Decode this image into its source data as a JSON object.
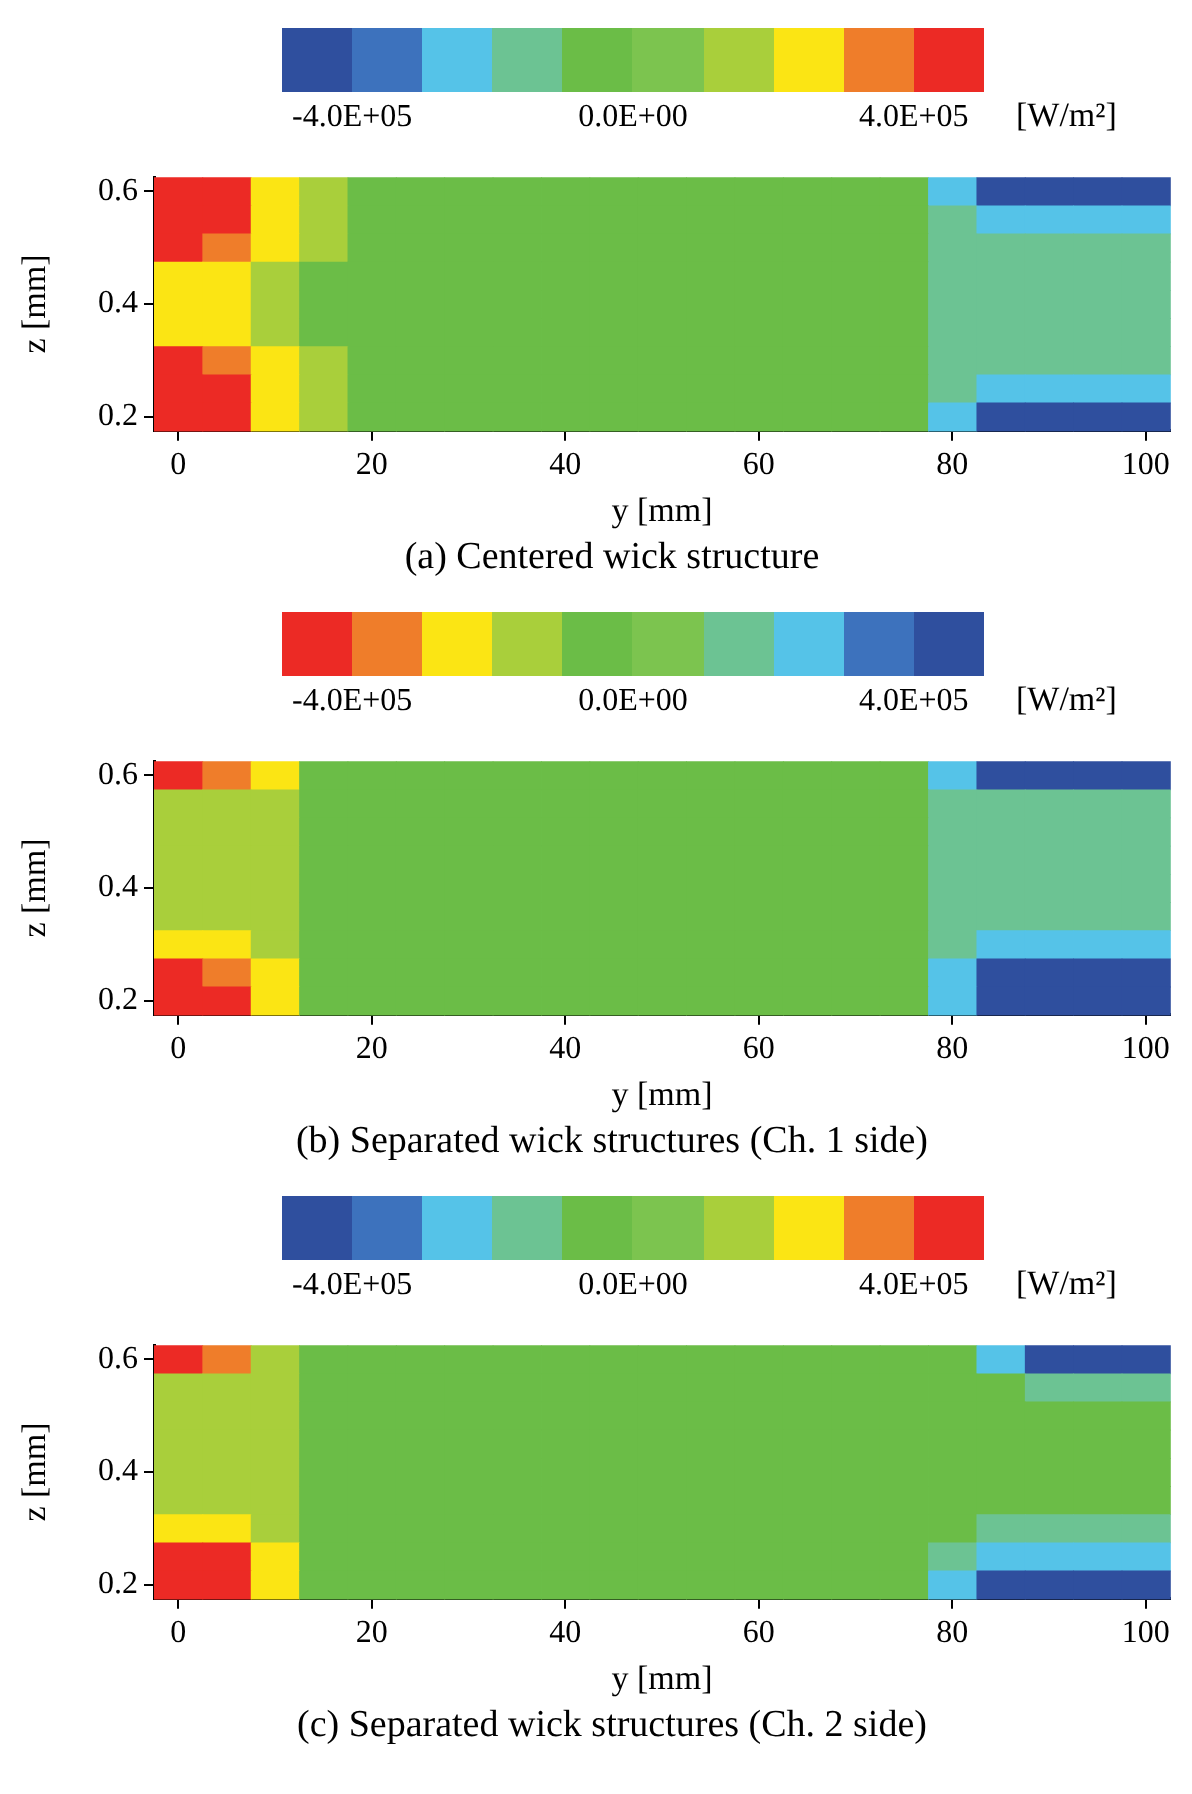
{
  "chart_data": [
    {
      "type": "heatmap",
      "title": "(a) Centered wick structure",
      "xlabel": "y [mm]",
      "ylabel": "z [mm]",
      "clabel": "[W/m²]",
      "clim": [
        -500000,
        500000
      ],
      "cticks": [
        {
          "value": -400000,
          "label": "-4.0E+05"
        },
        {
          "value": 0,
          "label": "0.0E+00"
        },
        {
          "value": 400000,
          "label": "4.0E+05"
        }
      ],
      "colors": [
        "#2f4f9e",
        "#3d72bd",
        "#55c3e8",
        "#6cc393",
        "#6bbd47",
        "#7cc44f",
        "#a9cf3b",
        "#fbe514",
        "#ef7d2a",
        "#ec2a25"
      ],
      "categories": [
        "0",
        null,
        null,
        null,
        "20",
        null,
        null,
        null,
        "40",
        null,
        null,
        null,
        "60",
        null,
        null,
        null,
        "80",
        null,
        null,
        null,
        "100"
      ],
      "y_categories": [
        "0.6",
        null,
        null,
        null,
        "0.4",
        null,
        null,
        null,
        "0.2"
      ],
      "cells": [
        [
          450000,
          450000,
          250000,
          150000,
          -50000,
          -50000,
          -50000,
          -50000,
          -50000,
          -50000,
          -50000,
          -50000,
          -50000,
          -50000,
          -50000,
          -50000,
          -250000,
          -450000,
          -450000,
          -450000,
          -450000
        ],
        [
          450000,
          450000,
          250000,
          150000,
          -50000,
          -50000,
          -50000,
          -50000,
          -50000,
          -50000,
          -50000,
          -50000,
          -50000,
          -50000,
          -50000,
          -50000,
          -150000,
          -250000,
          -250000,
          -250000,
          -250000
        ],
        [
          450000,
          350000,
          250000,
          150000,
          -50000,
          -50000,
          -50000,
          -50000,
          -50000,
          -50000,
          -50000,
          -50000,
          -50000,
          -50000,
          -50000,
          -50000,
          -150000,
          -150000,
          -150000,
          -150000,
          -150000
        ],
        [
          250000,
          250000,
          150000,
          -50000,
          -50000,
          -50000,
          -50000,
          -50000,
          -50000,
          -50000,
          -50000,
          -50000,
          -50000,
          -50000,
          -50000,
          -50000,
          -150000,
          -150000,
          -150000,
          -150000,
          -150000
        ],
        [
          250000,
          250000,
          150000,
          -50000,
          -50000,
          -50000,
          -50000,
          -50000,
          -50000,
          -50000,
          -50000,
          -50000,
          -50000,
          -50000,
          -50000,
          -50000,
          -150000,
          -150000,
          -150000,
          -150000,
          -150000
        ],
        [
          250000,
          250000,
          150000,
          -50000,
          -50000,
          -50000,
          -50000,
          -50000,
          -50000,
          -50000,
          -50000,
          -50000,
          -50000,
          -50000,
          -50000,
          -50000,
          -150000,
          -150000,
          -150000,
          -150000,
          -150000
        ],
        [
          450000,
          350000,
          250000,
          150000,
          -50000,
          -50000,
          -50000,
          -50000,
          -50000,
          -50000,
          -50000,
          -50000,
          -50000,
          -50000,
          -50000,
          -50000,
          -150000,
          -150000,
          -150000,
          -150000,
          -150000
        ],
        [
          450000,
          450000,
          250000,
          150000,
          -50000,
          -50000,
          -50000,
          -50000,
          -50000,
          -50000,
          -50000,
          -50000,
          -50000,
          -50000,
          -50000,
          -50000,
          -150000,
          -250000,
          -250000,
          -250000,
          -250000
        ],
        [
          450000,
          450000,
          250000,
          150000,
          -50000,
          -50000,
          -50000,
          -50000,
          -50000,
          -50000,
          -50000,
          -50000,
          -50000,
          -50000,
          -50000,
          -50000,
          -250000,
          -450000,
          -450000,
          -450000,
          -450000
        ]
      ]
    },
    {
      "type": "heatmap",
      "title": "(b) Separated wick structures (Ch. 1 side)",
      "xlabel": "y [mm]",
      "ylabel": "z [mm]",
      "clabel": "[W/m²]",
      "clim": [
        -500000,
        500000
      ],
      "cticks": [
        {
          "value": -400000,
          "label": "-4.0E+05"
        },
        {
          "value": 0,
          "label": "0.0E+00"
        },
        {
          "value": 400000,
          "label": "4.0E+05"
        }
      ],
      "colors": [
        "#ec2a25",
        "#ef7d2a",
        "#fbe514",
        "#a9cf3b",
        "#6bbd47",
        "#7cc44f",
        "#6cc393",
        "#55c3e8",
        "#3d72bd",
        "#2f4f9e"
      ],
      "categories": [
        "0",
        null,
        null,
        null,
        "20",
        null,
        null,
        null,
        "40",
        null,
        null,
        null,
        "60",
        null,
        null,
        null,
        "80",
        null,
        null,
        null,
        "100"
      ],
      "y_categories": [
        "0.6",
        null,
        null,
        null,
        "0.4",
        null,
        null,
        null,
        "0.2"
      ],
      "cells": [
        [
          -450000,
          -350000,
          -250000,
          -50000,
          -50000,
          -50000,
          -50000,
          -50000,
          -50000,
          -50000,
          -50000,
          -50000,
          -50000,
          -50000,
          -50000,
          -50000,
          250000,
          450000,
          450000,
          450000,
          450000
        ],
        [
          -150000,
          -150000,
          -150000,
          -50000,
          -50000,
          -50000,
          -50000,
          -50000,
          -50000,
          -50000,
          -50000,
          -50000,
          -50000,
          -50000,
          -50000,
          -50000,
          150000,
          150000,
          150000,
          150000,
          150000
        ],
        [
          -150000,
          -150000,
          -150000,
          -50000,
          -50000,
          -50000,
          -50000,
          -50000,
          -50000,
          -50000,
          -50000,
          -50000,
          -50000,
          -50000,
          -50000,
          -50000,
          150000,
          150000,
          150000,
          150000,
          150000
        ],
        [
          -150000,
          -150000,
          -150000,
          -50000,
          -50000,
          -50000,
          -50000,
          -50000,
          -50000,
          -50000,
          -50000,
          -50000,
          -50000,
          -50000,
          -50000,
          -50000,
          150000,
          150000,
          150000,
          150000,
          150000
        ],
        [
          -150000,
          -150000,
          -150000,
          -50000,
          -50000,
          -50000,
          -50000,
          -50000,
          -50000,
          -50000,
          -50000,
          -50000,
          -50000,
          -50000,
          -50000,
          -50000,
          150000,
          150000,
          150000,
          150000,
          150000
        ],
        [
          -150000,
          -150000,
          -150000,
          -50000,
          -50000,
          -50000,
          -50000,
          -50000,
          -50000,
          -50000,
          -50000,
          -50000,
          -50000,
          -50000,
          -50000,
          -50000,
          150000,
          150000,
          150000,
          150000,
          150000
        ],
        [
          -250000,
          -250000,
          -150000,
          -50000,
          -50000,
          -50000,
          -50000,
          -50000,
          -50000,
          -50000,
          -50000,
          -50000,
          -50000,
          -50000,
          -50000,
          -50000,
          150000,
          250000,
          250000,
          250000,
          250000
        ],
        [
          -450000,
          -350000,
          -250000,
          -50000,
          -50000,
          -50000,
          -50000,
          -50000,
          -50000,
          -50000,
          -50000,
          -50000,
          -50000,
          -50000,
          -50000,
          -50000,
          250000,
          450000,
          450000,
          450000,
          450000
        ],
        [
          -450000,
          -450000,
          -250000,
          -50000,
          -50000,
          -50000,
          -50000,
          -50000,
          -50000,
          -50000,
          -50000,
          -50000,
          -50000,
          -50000,
          -50000,
          -50000,
          250000,
          450000,
          450000,
          450000,
          450000
        ]
      ]
    },
    {
      "type": "heatmap",
      "title": "(c) Separated wick structures (Ch. 2 side)",
      "xlabel": "y [mm]",
      "ylabel": "z [mm]",
      "clabel": "[W/m²]",
      "clim": [
        -500000,
        500000
      ],
      "cticks": [
        {
          "value": -400000,
          "label": "-4.0E+05"
        },
        {
          "value": 0,
          "label": "0.0E+00"
        },
        {
          "value": 400000,
          "label": "4.0E+05"
        }
      ],
      "colors": [
        "#2f4f9e",
        "#3d72bd",
        "#55c3e8",
        "#6cc393",
        "#6bbd47",
        "#7cc44f",
        "#a9cf3b",
        "#fbe514",
        "#ef7d2a",
        "#ec2a25"
      ],
      "categories": [
        "0",
        null,
        null,
        null,
        "20",
        null,
        null,
        null,
        "40",
        null,
        null,
        null,
        "60",
        null,
        null,
        null,
        "80",
        null,
        null,
        null,
        "100"
      ],
      "y_categories": [
        "0.6",
        null,
        null,
        null,
        "0.4",
        null,
        null,
        null,
        "0.2"
      ],
      "cells": [
        [
          450000,
          350000,
          150000,
          -50000,
          -50000,
          -50000,
          -50000,
          -50000,
          -50000,
          -50000,
          -50000,
          -50000,
          -50000,
          -50000,
          -50000,
          -50000,
          -50000,
          -250000,
          -450000,
          -450000,
          -450000
        ],
        [
          150000,
          150000,
          150000,
          -50000,
          -50000,
          -50000,
          -50000,
          -50000,
          -50000,
          -50000,
          -50000,
          -50000,
          -50000,
          -50000,
          -50000,
          -50000,
          -50000,
          -50000,
          -150000,
          -150000,
          -150000
        ],
        [
          150000,
          150000,
          150000,
          -50000,
          -50000,
          -50000,
          -50000,
          -50000,
          -50000,
          -50000,
          -50000,
          -50000,
          -50000,
          -50000,
          -50000,
          -50000,
          -50000,
          -50000,
          -50000,
          -50000,
          -50000
        ],
        [
          150000,
          150000,
          150000,
          -50000,
          -50000,
          -50000,
          -50000,
          -50000,
          -50000,
          -50000,
          -50000,
          -50000,
          -50000,
          -50000,
          -50000,
          -50000,
          -50000,
          -50000,
          -50000,
          -50000,
          -50000
        ],
        [
          150000,
          150000,
          150000,
          -50000,
          -50000,
          -50000,
          -50000,
          -50000,
          -50000,
          -50000,
          -50000,
          -50000,
          -50000,
          -50000,
          -50000,
          -50000,
          -50000,
          -50000,
          -50000,
          -50000,
          -50000
        ],
        [
          150000,
          150000,
          150000,
          -50000,
          -50000,
          -50000,
          -50000,
          -50000,
          -50000,
          -50000,
          -50000,
          -50000,
          -50000,
          -50000,
          -50000,
          -50000,
          -50000,
          -50000,
          -50000,
          -50000,
          -50000
        ],
        [
          250000,
          250000,
          150000,
          -50000,
          -50000,
          -50000,
          -50000,
          -50000,
          -50000,
          -50000,
          -50000,
          -50000,
          -50000,
          -50000,
          -50000,
          -50000,
          -50000,
          -150000,
          -150000,
          -150000,
          -150000
        ],
        [
          450000,
          450000,
          250000,
          -50000,
          -50000,
          -50000,
          -50000,
          -50000,
          -50000,
          -50000,
          -50000,
          -50000,
          -50000,
          -50000,
          -50000,
          -50000,
          -150000,
          -250000,
          -250000,
          -250000,
          -250000
        ],
        [
          450000,
          450000,
          250000,
          -50000,
          -50000,
          -50000,
          -50000,
          -50000,
          -50000,
          -50000,
          -50000,
          -50000,
          -50000,
          -50000,
          -50000,
          -50000,
          -250000,
          -450000,
          -450000,
          -450000,
          -450000
        ]
      ]
    }
  ]
}
